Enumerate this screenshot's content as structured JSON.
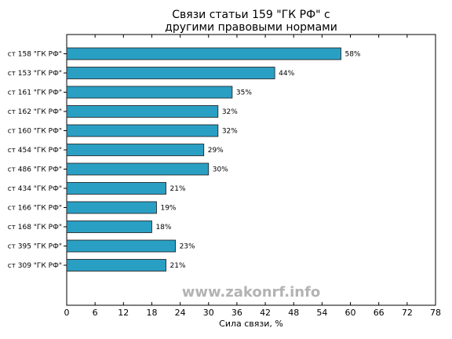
{
  "chart_data": {
    "type": "bar",
    "orientation": "horizontal",
    "title_lines": [
      "Связи статьи 159 \"ГК РФ\" с",
      "другими правовыми нормами"
    ],
    "categories": [
      "ст 158 \"ГК РФ\"",
      "ст 153 \"ГК РФ\"",
      "ст 161 \"ГК РФ\"",
      "ст 162 \"ГК РФ\"",
      "ст 160 \"ГК РФ\"",
      "ст 454 \"ГК РФ\"",
      "ст 486 \"ГК РФ\"",
      "ст 434 \"ГК РФ\"",
      "ст 166 \"ГК РФ\"",
      "ст 168 \"ГК РФ\"",
      "ст 395 \"ГК РФ\"",
      "ст 309 \"ГК РФ\""
    ],
    "values": [
      58,
      44,
      35,
      32,
      32,
      29,
      30,
      21,
      19,
      18,
      23,
      21
    ],
    "value_labels": [
      "58%",
      "44%",
      "35%",
      "32%",
      "32%",
      "29%",
      "30%",
      "21%",
      "19%",
      "18%",
      "23%",
      "21%"
    ],
    "xlabel": "Сила связи, %",
    "ylabel": "",
    "xlim": [
      0,
      78
    ],
    "xticks": [
      0,
      6,
      12,
      18,
      24,
      30,
      36,
      42,
      48,
      54,
      60,
      66,
      72,
      78
    ],
    "grid": false,
    "bar_color": "#2a9fc4",
    "bar_edge_color": "#1a1a1a"
  },
  "watermark": "www.zakonrf.info"
}
